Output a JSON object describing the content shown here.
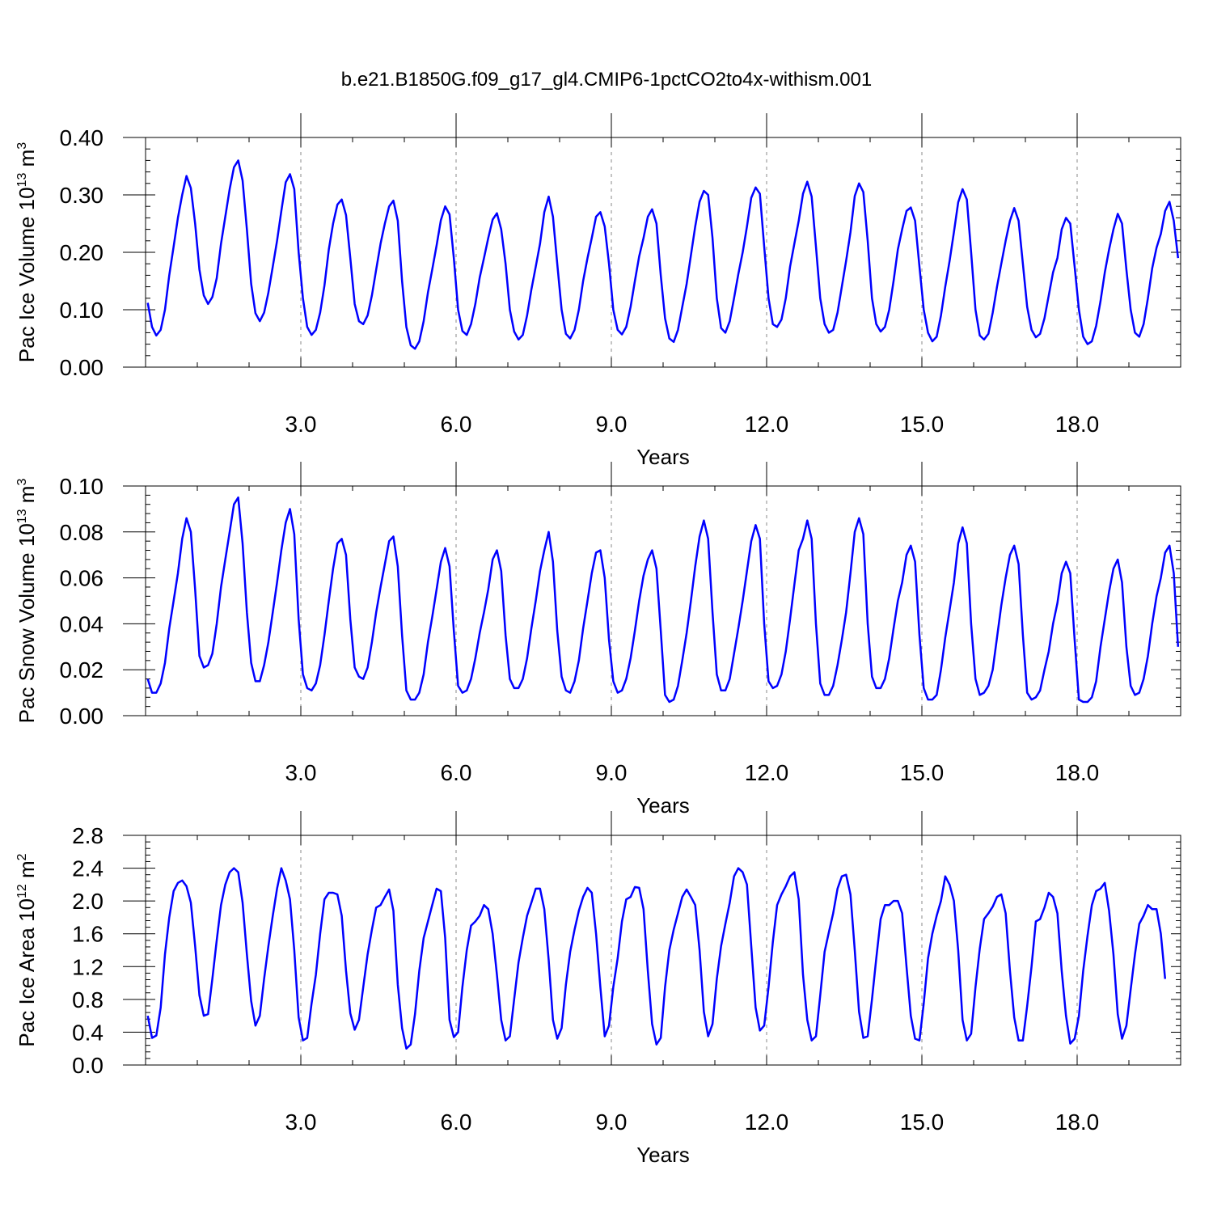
{
  "title": "b.e21.B1850G.f09_g17_gl4.CMIP6-1pctCO2to4x-withism.001",
  "line_color": "#0000ff",
  "chart_data": [
    {
      "type": "line",
      "ylabel": "Pac Ice Volume 10",
      "ylabel_sup": "13",
      "ylabel_unit": "m",
      "ylabel_unit_sup": "3",
      "xlabel": "Years",
      "xlim": [
        0.0,
        20.0
      ],
      "ylim": [
        0.0,
        0.4
      ],
      "xticks": [
        3.0,
        6.0,
        9.0,
        12.0,
        15.0,
        18.0
      ],
      "xtick_labels": [
        "3.0",
        "6.0",
        "9.0",
        "12.0",
        "15.0",
        "18.0"
      ],
      "yticks": [
        0.0,
        0.1,
        0.2,
        0.3,
        0.4
      ],
      "ytick_labels": [
        "0.00",
        "0.10",
        "0.20",
        "0.30",
        "0.40"
      ],
      "x_start": 0.0417,
      "x_step": 0.0833,
      "values": [
        0.112,
        0.07,
        0.055,
        0.065,
        0.1,
        0.16,
        0.21,
        0.26,
        0.3,
        0.333,
        0.312,
        0.25,
        0.17,
        0.125,
        0.11,
        0.122,
        0.155,
        0.215,
        0.262,
        0.31,
        0.348,
        0.36,
        0.325,
        0.24,
        0.145,
        0.094,
        0.08,
        0.095,
        0.13,
        0.175,
        0.22,
        0.272,
        0.322,
        0.336,
        0.31,
        0.2,
        0.12,
        0.07,
        0.056,
        0.065,
        0.095,
        0.142,
        0.205,
        0.25,
        0.283,
        0.292,
        0.265,
        0.19,
        0.11,
        0.08,
        0.075,
        0.09,
        0.125,
        0.17,
        0.215,
        0.25,
        0.28,
        0.29,
        0.255,
        0.15,
        0.07,
        0.038,
        0.032,
        0.045,
        0.08,
        0.13,
        0.17,
        0.212,
        0.256,
        0.28,
        0.266,
        0.19,
        0.1,
        0.063,
        0.056,
        0.075,
        0.11,
        0.156,
        0.19,
        0.225,
        0.257,
        0.268,
        0.24,
        0.18,
        0.1,
        0.062,
        0.048,
        0.056,
        0.09,
        0.135,
        0.175,
        0.215,
        0.27,
        0.297,
        0.262,
        0.18,
        0.1,
        0.058,
        0.05,
        0.065,
        0.1,
        0.15,
        0.19,
        0.225,
        0.262,
        0.27,
        0.245,
        0.18,
        0.1,
        0.065,
        0.057,
        0.07,
        0.105,
        0.15,
        0.193,
        0.225,
        0.262,
        0.275,
        0.25,
        0.16,
        0.085,
        0.05,
        0.044,
        0.065,
        0.105,
        0.145,
        0.195,
        0.245,
        0.288,
        0.307,
        0.3,
        0.225,
        0.12,
        0.068,
        0.06,
        0.08,
        0.12,
        0.162,
        0.2,
        0.245,
        0.295,
        0.313,
        0.302,
        0.21,
        0.12,
        0.075,
        0.07,
        0.083,
        0.12,
        0.175,
        0.215,
        0.255,
        0.302,
        0.323,
        0.297,
        0.21,
        0.12,
        0.075,
        0.06,
        0.065,
        0.095,
        0.14,
        0.185,
        0.235,
        0.298,
        0.32,
        0.305,
        0.22,
        0.12,
        0.075,
        0.062,
        0.07,
        0.1,
        0.15,
        0.205,
        0.24,
        0.272,
        0.278,
        0.255,
        0.175,
        0.1,
        0.06,
        0.045,
        0.053,
        0.09,
        0.14,
        0.185,
        0.235,
        0.287,
        0.31,
        0.292,
        0.2,
        0.1,
        0.055,
        0.048,
        0.058,
        0.095,
        0.14,
        0.18,
        0.22,
        0.255,
        0.277,
        0.255,
        0.18,
        0.105,
        0.065,
        0.052,
        0.058,
        0.085,
        0.125,
        0.165,
        0.19,
        0.24,
        0.26,
        0.25,
        0.175,
        0.1,
        0.053,
        0.04,
        0.045,
        0.072,
        0.115,
        0.165,
        0.205,
        0.24,
        0.267,
        0.25,
        0.17,
        0.1,
        0.06,
        0.053,
        0.075,
        0.12,
        0.172,
        0.208,
        0.232,
        0.272,
        0.288,
        0.255,
        0.19
      ]
    },
    {
      "type": "line",
      "ylabel": "Pac Snow Volume 10",
      "ylabel_sup": "13",
      "ylabel_unit": "m",
      "ylabel_unit_sup": "3",
      "xlabel": "Years",
      "xlim": [
        0.0,
        20.0
      ],
      "ylim": [
        0.0,
        0.1
      ],
      "xticks": [
        3.0,
        6.0,
        9.0,
        12.0,
        15.0,
        18.0
      ],
      "xtick_labels": [
        "3.0",
        "6.0",
        "9.0",
        "12.0",
        "15.0",
        "18.0"
      ],
      "yticks": [
        0.0,
        0.02,
        0.04,
        0.06,
        0.08,
        0.1
      ],
      "ytick_labels": [
        "0.00",
        "0.02",
        "0.04",
        "0.06",
        "0.08",
        "0.10"
      ],
      "x_start": 0.0417,
      "x_step": 0.0833,
      "values": [
        0.016,
        0.01,
        0.01,
        0.014,
        0.023,
        0.038,
        0.05,
        0.062,
        0.077,
        0.086,
        0.08,
        0.055,
        0.026,
        0.021,
        0.022,
        0.027,
        0.04,
        0.056,
        0.068,
        0.08,
        0.092,
        0.095,
        0.075,
        0.045,
        0.023,
        0.015,
        0.015,
        0.022,
        0.032,
        0.045,
        0.058,
        0.072,
        0.084,
        0.09,
        0.079,
        0.042,
        0.018,
        0.012,
        0.011,
        0.014,
        0.022,
        0.035,
        0.05,
        0.064,
        0.075,
        0.077,
        0.07,
        0.042,
        0.021,
        0.017,
        0.016,
        0.021,
        0.032,
        0.045,
        0.056,
        0.066,
        0.076,
        0.078,
        0.065,
        0.035,
        0.011,
        0.007,
        0.007,
        0.01,
        0.018,
        0.032,
        0.043,
        0.055,
        0.067,
        0.073,
        0.065,
        0.037,
        0.013,
        0.01,
        0.011,
        0.016,
        0.025,
        0.036,
        0.045,
        0.055,
        0.068,
        0.072,
        0.063,
        0.035,
        0.016,
        0.012,
        0.012,
        0.016,
        0.025,
        0.038,
        0.05,
        0.063,
        0.072,
        0.08,
        0.067,
        0.037,
        0.017,
        0.011,
        0.01,
        0.015,
        0.024,
        0.038,
        0.05,
        0.062,
        0.071,
        0.072,
        0.06,
        0.033,
        0.015,
        0.01,
        0.011,
        0.016,
        0.025,
        0.037,
        0.05,
        0.061,
        0.068,
        0.072,
        0.064,
        0.037,
        0.009,
        0.006,
        0.007,
        0.013,
        0.024,
        0.036,
        0.05,
        0.065,
        0.078,
        0.085,
        0.077,
        0.045,
        0.018,
        0.011,
        0.011,
        0.016,
        0.027,
        0.038,
        0.05,
        0.063,
        0.076,
        0.083,
        0.077,
        0.04,
        0.015,
        0.012,
        0.013,
        0.018,
        0.028,
        0.042,
        0.057,
        0.072,
        0.077,
        0.085,
        0.077,
        0.04,
        0.014,
        0.009,
        0.009,
        0.013,
        0.022,
        0.033,
        0.045,
        0.062,
        0.08,
        0.086,
        0.079,
        0.04,
        0.017,
        0.012,
        0.012,
        0.016,
        0.025,
        0.038,
        0.05,
        0.058,
        0.07,
        0.074,
        0.067,
        0.035,
        0.012,
        0.007,
        0.007,
        0.009,
        0.02,
        0.034,
        0.046,
        0.058,
        0.075,
        0.082,
        0.075,
        0.04,
        0.016,
        0.009,
        0.01,
        0.013,
        0.02,
        0.034,
        0.048,
        0.06,
        0.07,
        0.074,
        0.066,
        0.035,
        0.01,
        0.007,
        0.008,
        0.011,
        0.02,
        0.028,
        0.04,
        0.049,
        0.062,
        0.067,
        0.062,
        0.033,
        0.007,
        0.006,
        0.006,
        0.008,
        0.015,
        0.03,
        0.042,
        0.054,
        0.064,
        0.068,
        0.058,
        0.03,
        0.013,
        0.009,
        0.01,
        0.016,
        0.026,
        0.04,
        0.052,
        0.06,
        0.071,
        0.074,
        0.062,
        0.03
      ]
    },
    {
      "type": "line",
      "ylabel": "Pac Ice Area 10",
      "ylabel_sup": "12",
      "ylabel_unit": "m",
      "ylabel_unit_sup": "2",
      "xlabel": "Years",
      "xlim": [
        0.0,
        20.0
      ],
      "ylim": [
        0.0,
        2.8
      ],
      "xticks": [
        3.0,
        6.0,
        9.0,
        12.0,
        15.0,
        18.0
      ],
      "xtick_labels": [
        "3.0",
        "6.0",
        "9.0",
        "12.0",
        "15.0",
        "18.0"
      ],
      "yticks": [
        0.0,
        0.4,
        0.8,
        1.2,
        1.6,
        2.0,
        2.4,
        2.8
      ],
      "ytick_labels": [
        "0.0",
        "0.4",
        "0.8",
        "1.2",
        "1.6",
        "2.0",
        "2.4",
        "2.8"
      ],
      "x_start": 0.0417,
      "x_step": 0.0833,
      "values": [
        0.6,
        0.33,
        0.36,
        0.7,
        1.35,
        1.8,
        2.12,
        2.22,
        2.25,
        2.18,
        1.98,
        1.45,
        0.85,
        0.6,
        0.62,
        1.05,
        1.52,
        1.95,
        2.2,
        2.35,
        2.4,
        2.35,
        1.98,
        1.35,
        0.78,
        0.48,
        0.6,
        1.05,
        1.45,
        1.82,
        2.15,
        2.4,
        2.25,
        2.02,
        1.4,
        0.58,
        0.3,
        0.33,
        0.75,
        1.1,
        1.6,
        2.02,
        2.1,
        2.1,
        2.08,
        1.82,
        1.15,
        0.63,
        0.43,
        0.55,
        0.95,
        1.35,
        1.65,
        1.92,
        1.95,
        2.05,
        2.14,
        1.88,
        0.98,
        0.45,
        0.2,
        0.25,
        0.62,
        1.15,
        1.55,
        1.75,
        1.95,
        2.15,
        2.12,
        1.55,
        0.55,
        0.34,
        0.4,
        0.95,
        1.4,
        1.7,
        1.75,
        1.82,
        1.95,
        1.9,
        1.6,
        1.1,
        0.55,
        0.3,
        0.35,
        0.8,
        1.25,
        1.55,
        1.82,
        1.98,
        2.15,
        2.15,
        1.9,
        1.28,
        0.55,
        0.32,
        0.45,
        0.98,
        1.38,
        1.65,
        1.88,
        2.05,
        2.16,
        2.1,
        1.6,
        0.95,
        0.35,
        0.48,
        0.95,
        1.3,
        1.75,
        2.02,
        2.05,
        2.17,
        2.16,
        1.9,
        1.15,
        0.5,
        0.25,
        0.33,
        0.95,
        1.4,
        1.65,
        1.85,
        2.05,
        2.14,
        2.05,
        1.95,
        1.4,
        0.65,
        0.35,
        0.5,
        1.05,
        1.45,
        1.72,
        1.98,
        2.3,
        2.4,
        2.35,
        2.2,
        1.45,
        0.7,
        0.42,
        0.48,
        0.95,
        1.5,
        1.95,
        2.08,
        2.18,
        2.3,
        2.35,
        2.02,
        1.1,
        0.55,
        0.3,
        0.35,
        0.85,
        1.38,
        1.62,
        1.85,
        2.15,
        2.3,
        2.32,
        2.08,
        1.4,
        0.65,
        0.33,
        0.35,
        0.8,
        1.3,
        1.78,
        1.95,
        1.95,
        2.0,
        2.0,
        1.85,
        1.2,
        0.6,
        0.32,
        0.3,
        0.75,
        1.3,
        1.6,
        1.82,
        2.0,
        2.3,
        2.2,
        2.0,
        1.4,
        0.55,
        0.3,
        0.38,
        0.95,
        1.42,
        1.78,
        1.85,
        1.93,
        2.05,
        2.08,
        1.85,
        1.15,
        0.58,
        0.3,
        0.3,
        0.72,
        1.2,
        1.75,
        1.78,
        1.92,
        2.1,
        2.05,
        1.85,
        1.15,
        0.6,
        0.26,
        0.32,
        0.6,
        1.15,
        1.58,
        1.95,
        2.12,
        2.15,
        2.22,
        1.88,
        1.35,
        0.62,
        0.32,
        0.48,
        0.92,
        1.35,
        1.72,
        1.82,
        1.95,
        1.9,
        1.9,
        1.6,
        1.05
      ]
    }
  ]
}
